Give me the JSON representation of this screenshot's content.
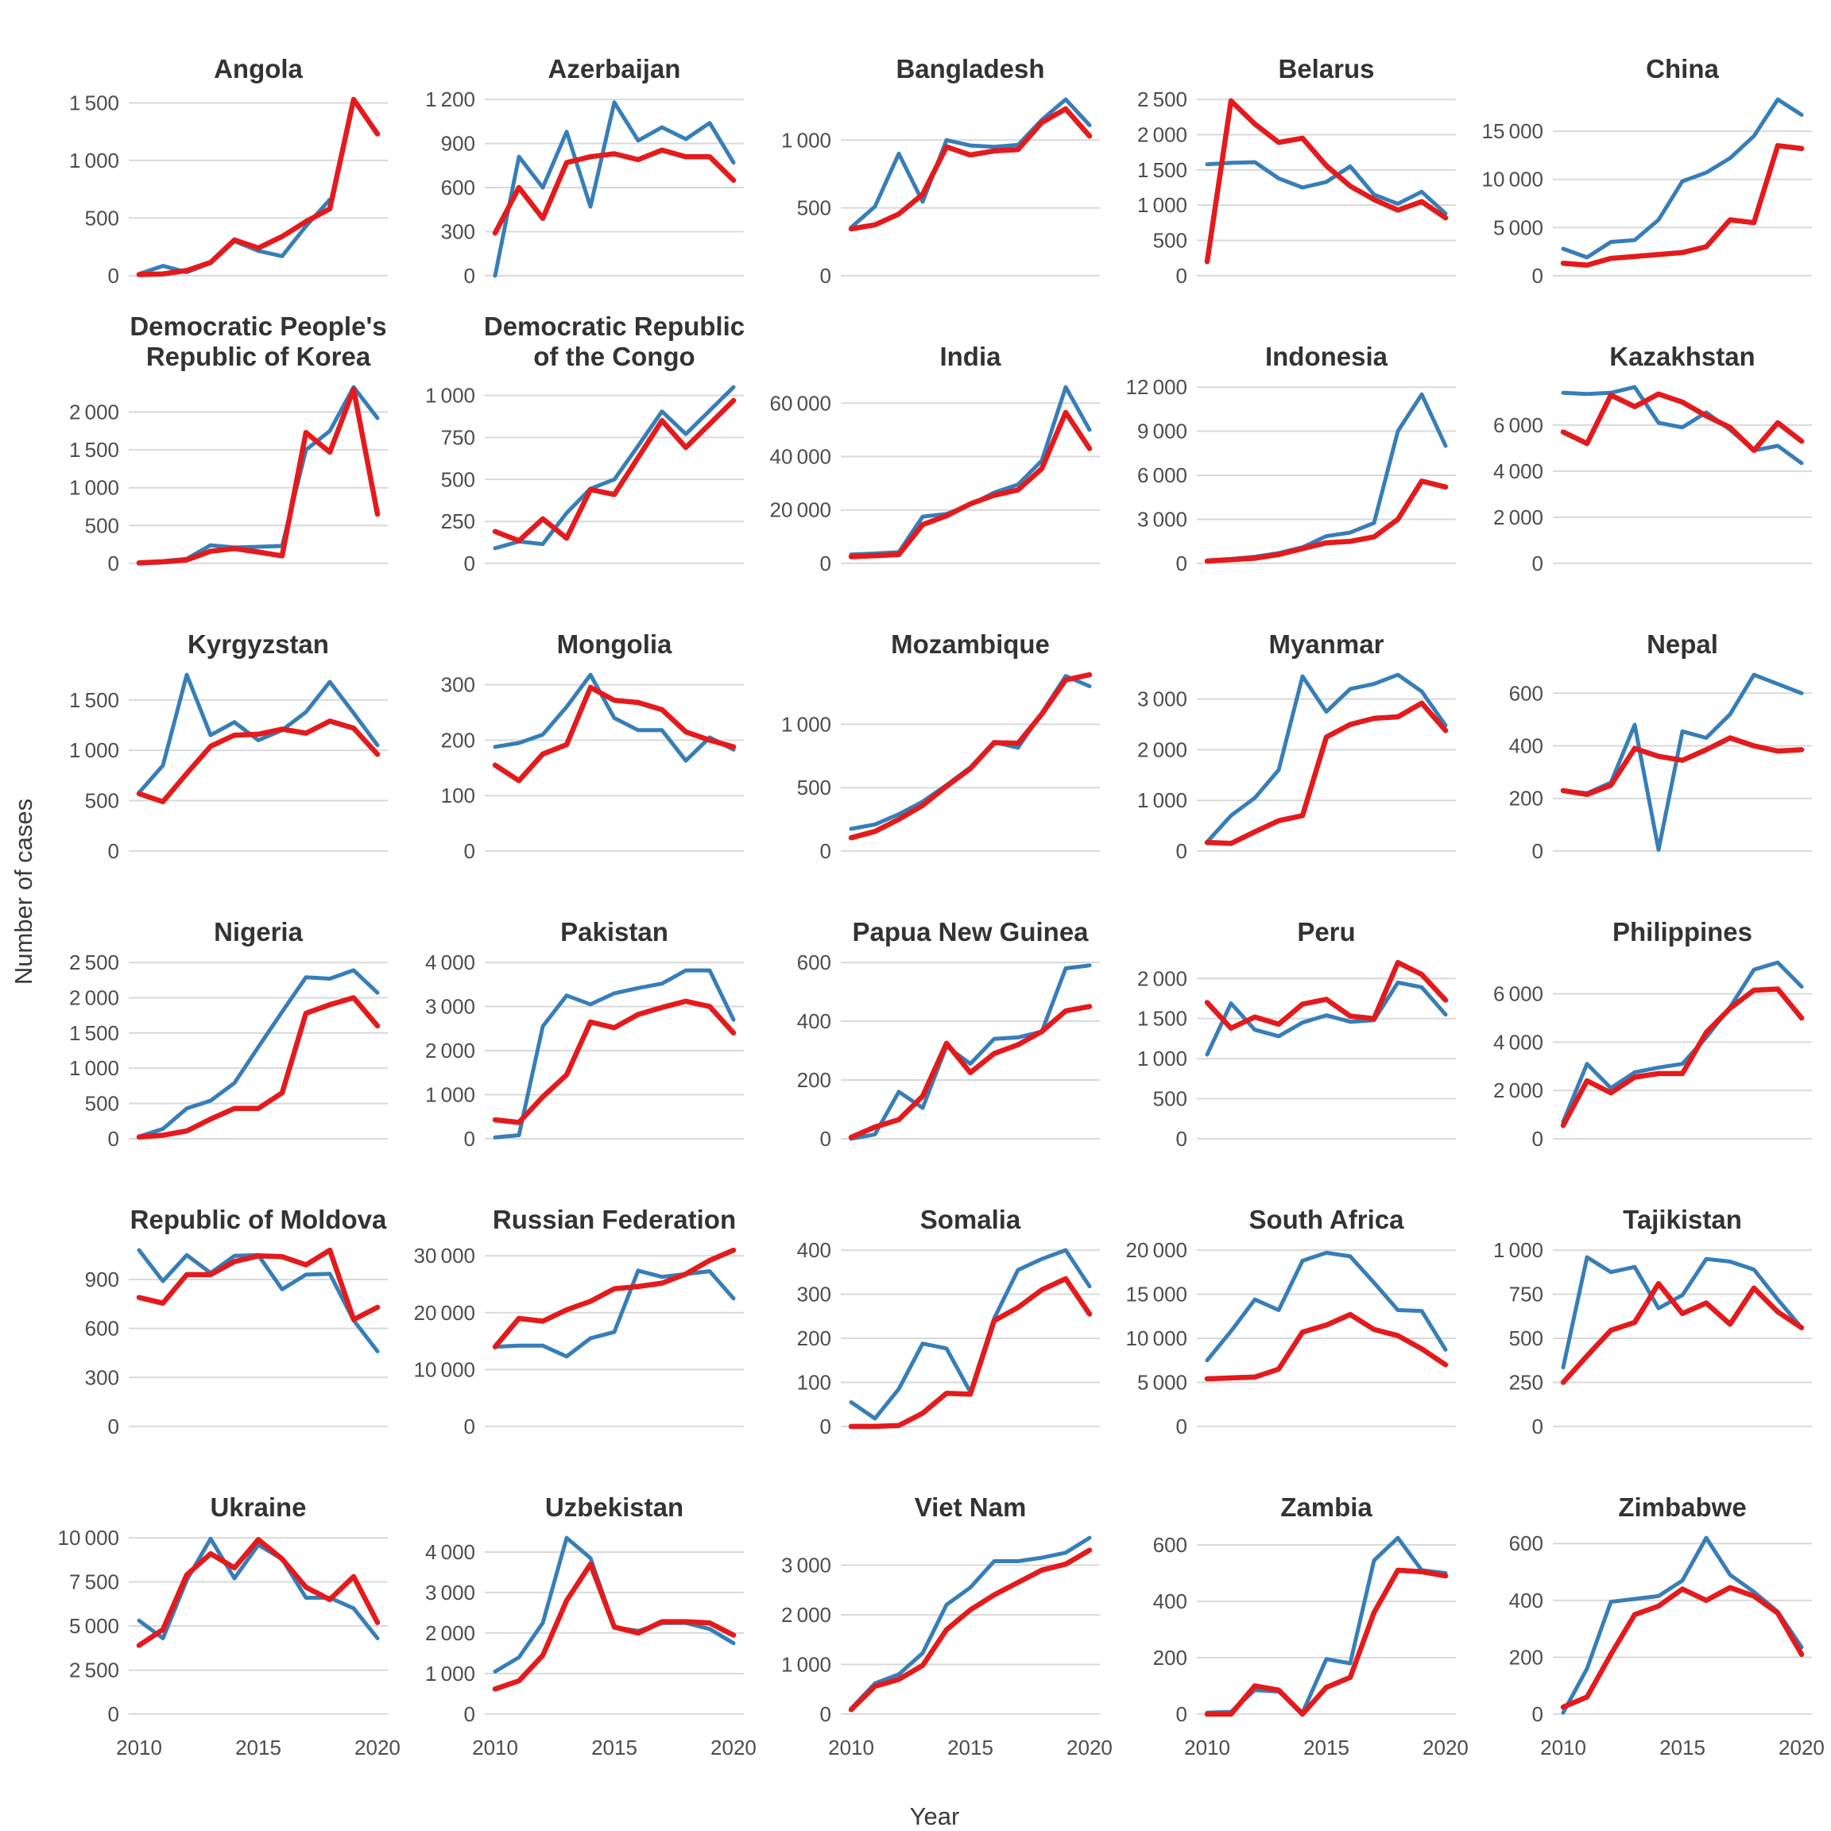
{
  "figure": {
    "kind": "faceted-line-chart-grid",
    "rows": 6,
    "cols": 5
  },
  "chart_data": {
    "type": "line",
    "title": "",
    "xlabel": "Year",
    "ylabel": "Number of cases",
    "x": [
      2010,
      2011,
      2012,
      2013,
      2014,
      2015,
      2016,
      2017,
      2018,
      2019,
      2020
    ],
    "x_axis_ticks": [
      2010,
      2015,
      2020
    ],
    "legend": "none",
    "grid": "horizontal-only",
    "series_colors": {
      "blue": "#377EB8",
      "red": "#E41A1C"
    },
    "panels": [
      {
        "title": "Angola",
        "yticks": [
          0,
          500,
          1000,
          1500
        ],
        "series": {
          "blue": [
            15,
            85,
            30,
            110,
            300,
            215,
            170,
            430,
            660,
            null,
            null
          ],
          "red": [
            10,
            15,
            45,
            115,
            310,
            240,
            340,
            470,
            580,
            1530,
            1230
          ]
        }
      },
      {
        "title": "Azerbaijan",
        "yticks": [
          0,
          300,
          600,
          900,
          1200
        ],
        "series": {
          "blue": [
            0,
            810,
            600,
            980,
            470,
            1180,
            920,
            1010,
            930,
            1040,
            770
          ],
          "red": [
            290,
            600,
            390,
            770,
            810,
            830,
            790,
            855,
            810,
            810,
            650
          ]
        }
      },
      {
        "title": "Bangladesh",
        "yticks": [
          0,
          500,
          1000
        ],
        "series": {
          "blue": [
            355,
            510,
            900,
            545,
            1000,
            960,
            950,
            965,
            1150,
            1300,
            1110
          ],
          "red": [
            345,
            375,
            455,
            600,
            950,
            890,
            920,
            930,
            1130,
            1230,
            1030
          ]
        }
      },
      {
        "title": "Belarus",
        "yticks": [
          0,
          500,
          1000,
          1500,
          2000,
          2500
        ],
        "series": {
          "blue": [
            1580,
            1600,
            1610,
            1380,
            1250,
            1330,
            1550,
            1150,
            1020,
            1190,
            880
          ],
          "red": [
            200,
            2480,
            2150,
            1890,
            1950,
            1560,
            1270,
            1080,
            930,
            1050,
            820
          ]
        }
      },
      {
        "title": "China",
        "yticks": [
          0,
          5000,
          10000,
          15000
        ],
        "series": {
          "blue": [
            2800,
            1900,
            3500,
            3700,
            5800,
            9800,
            10700,
            12200,
            14500,
            18300,
            16700
          ],
          "red": [
            1300,
            1100,
            1800,
            2000,
            2200,
            2400,
            3000,
            5800,
            5500,
            13500,
            13200
          ]
        }
      },
      {
        "title": "Democratic People's Republic of Korea",
        "yticks": [
          0,
          500,
          1000,
          1500,
          2000
        ],
        "series": {
          "blue": [
            15,
            30,
            60,
            240,
            210,
            220,
            230,
            1500,
            1750,
            2330,
            1920
          ],
          "red": [
            5,
            20,
            45,
            160,
            195,
            150,
            100,
            1730,
            1470,
            2300,
            650
          ]
        }
      },
      {
        "title": "Democratic Republic of the Congo",
        "yticks": [
          0,
          250,
          500,
          750,
          1000
        ],
        "series": {
          "blue": [
            90,
            130,
            115,
            300,
            445,
            500,
            700,
            905,
            770,
            910,
            1050
          ],
          "red": [
            190,
            135,
            265,
            150,
            440,
            410,
            630,
            850,
            690,
            830,
            970
          ]
        }
      },
      {
        "title": "India",
        "yticks": [
          0,
          20000,
          40000,
          60000
        ],
        "series": {
          "blue": [
            3300,
            3700,
            4200,
            17500,
            18500,
            22000,
            26500,
            29500,
            38500,
            66000,
            50000
          ],
          "red": [
            2500,
            2900,
            3300,
            14500,
            17800,
            22300,
            25500,
            27500,
            35500,
            56500,
            43000
          ]
        }
      },
      {
        "title": "Indonesia",
        "yticks": [
          0,
          3000,
          6000,
          9000,
          12000
        ],
        "series": {
          "blue": [
            200,
            300,
            450,
            700,
            1100,
            1850,
            2100,
            2750,
            9000,
            11500,
            8000
          ],
          "red": [
            150,
            250,
            350,
            600,
            1000,
            1400,
            1500,
            1800,
            3000,
            5600,
            5200
          ]
        }
      },
      {
        "title": "Kazakhstan",
        "yticks": [
          0,
          2000,
          4000,
          6000
        ],
        "series": {
          "blue": [
            7400,
            7350,
            7400,
            7650,
            6100,
            5900,
            6550,
            5800,
            4900,
            5100,
            4350
          ],
          "red": [
            5700,
            5200,
            7300,
            6800,
            7350,
            7000,
            6400,
            5900,
            4900,
            6100,
            5300
          ]
        }
      },
      {
        "title": "Kyrgyzstan",
        "yticks": [
          0,
          500,
          1000,
          1500
        ],
        "series": {
          "blue": [
            580,
            850,
            1750,
            1150,
            1280,
            1100,
            1200,
            1380,
            1680,
            1370,
            1050
          ],
          "red": [
            570,
            490,
            770,
            1040,
            1150,
            1160,
            1210,
            1170,
            1290,
            1220,
            960
          ]
        }
      },
      {
        "title": "Mongolia",
        "yticks": [
          0,
          100,
          200,
          300
        ],
        "series": {
          "blue": [
            188,
            195,
            210,
            260,
            318,
            240,
            218,
            218,
            163,
            205,
            183
          ],
          "red": [
            155,
            127,
            175,
            192,
            295,
            272,
            268,
            255,
            215,
            200,
            188
          ]
        }
      },
      {
        "title": "Mozambique",
        "yticks": [
          0,
          500,
          1000
        ],
        "series": {
          "blue": [
            175,
            210,
            290,
            390,
            520,
            660,
            860,
            815,
            1090,
            1380,
            1300
          ],
          "red": [
            105,
            155,
            250,
            360,
            510,
            650,
            855,
            850,
            1080,
            1350,
            1390
          ]
        }
      },
      {
        "title": "Myanmar",
        "yticks": [
          0,
          1000,
          2000,
          3000
        ],
        "series": {
          "blue": [
            180,
            700,
            1050,
            1600,
            3450,
            2750,
            3200,
            3300,
            3480,
            3150,
            2480
          ],
          "red": [
            170,
            150,
            380,
            600,
            700,
            2250,
            2500,
            2620,
            2650,
            2920,
            2380
          ]
        }
      },
      {
        "title": "Nepal",
        "yticks": [
          0,
          200,
          400,
          600
        ],
        "series": {
          "blue": [
            230,
            220,
            260,
            480,
            5,
            455,
            430,
            520,
            670,
            635,
            600
          ],
          "red": [
            230,
            215,
            250,
            390,
            360,
            345,
            385,
            430,
            400,
            380,
            385
          ]
        }
      },
      {
        "title": "Nigeria",
        "yticks": [
          0,
          500,
          1000,
          1500,
          2000,
          2500
        ],
        "series": {
          "blue": [
            30,
            140,
            430,
            540,
            790,
            1300,
            1800,
            2290,
            2270,
            2390,
            2070
          ],
          "red": [
            25,
            50,
            110,
            280,
            430,
            430,
            650,
            1780,
            1900,
            2000,
            1600
          ]
        }
      },
      {
        "title": "Pakistan",
        "yticks": [
          0,
          1000,
          2000,
          3000,
          4000
        ],
        "series": {
          "blue": [
            30,
            80,
            2550,
            3250,
            3050,
            3300,
            3420,
            3520,
            3820,
            3820,
            2700
          ],
          "red": [
            430,
            370,
            950,
            1450,
            2650,
            2520,
            2820,
            2980,
            3120,
            3000,
            2400
          ]
        }
      },
      {
        "title": "Papua New Guinea",
        "yticks": [
          0,
          200,
          400,
          600
        ],
        "series": {
          "blue": [
            0,
            15,
            160,
            105,
            315,
            255,
            340,
            345,
            365,
            580,
            590
          ],
          "red": [
            5,
            40,
            65,
            145,
            325,
            225,
            290,
            320,
            365,
            435,
            450
          ]
        }
      },
      {
        "title": "Peru",
        "yticks": [
          0,
          500,
          1000,
          1500,
          2000
        ],
        "series": {
          "blue": [
            1050,
            1690,
            1360,
            1280,
            1450,
            1540,
            1460,
            1480,
            1950,
            1890,
            1550
          ],
          "red": [
            1700,
            1380,
            1520,
            1430,
            1680,
            1740,
            1530,
            1500,
            2200,
            2050,
            1730
          ]
        }
      },
      {
        "title": "Philippines",
        "yticks": [
          0,
          2000,
          4000,
          6000
        ],
        "series": {
          "blue": [
            700,
            3100,
            2100,
            2750,
            2950,
            3100,
            4200,
            5450,
            7000,
            7300,
            6300
          ],
          "red": [
            550,
            2400,
            1900,
            2550,
            2700,
            2700,
            4400,
            5400,
            6150,
            6200,
            5000
          ]
        }
      },
      {
        "title": "Republic of Moldova",
        "yticks": [
          0,
          300,
          600,
          900
        ],
        "series": {
          "blue": [
            1080,
            890,
            1050,
            940,
            1045,
            1050,
            840,
            930,
            935,
            650,
            460
          ],
          "red": [
            790,
            755,
            930,
            930,
            1010,
            1045,
            1040,
            990,
            1080,
            655,
            730
          ]
        }
      },
      {
        "title": "Russian Federation",
        "yticks": [
          0,
          10000,
          20000,
          30000
        ],
        "series": {
          "blue": [
            14000,
            14200,
            14200,
            12300,
            15500,
            16600,
            27400,
            26300,
            26800,
            27300,
            22500
          ],
          "red": [
            14000,
            19000,
            18500,
            20500,
            22000,
            24200,
            24600,
            25200,
            26800,
            29200,
            31000
          ]
        }
      },
      {
        "title": "Somalia",
        "yticks": [
          0,
          100,
          200,
          300,
          400
        ],
        "series": {
          "blue": [
            55,
            18,
            85,
            188,
            177,
            78,
            245,
            355,
            380,
            400,
            318
          ],
          "red": [
            0,
            0,
            2,
            30,
            75,
            73,
            240,
            270,
            310,
            335,
            255
          ]
        }
      },
      {
        "title": "South Africa",
        "yticks": [
          0,
          5000,
          10000,
          15000,
          20000
        ],
        "series": {
          "blue": [
            7500,
            10800,
            14400,
            13200,
            18800,
            19700,
            19300,
            16300,
            13200,
            13100,
            8700
          ],
          "red": [
            5400,
            5500,
            5600,
            6500,
            10700,
            11500,
            12700,
            11000,
            10300,
            8800,
            7000
          ]
        }
      },
      {
        "title": "Tajikistan",
        "yticks": [
          0,
          250,
          500,
          750,
          1000
        ],
        "series": {
          "blue": [
            335,
            960,
            875,
            905,
            670,
            745,
            950,
            935,
            890,
            720,
            560
          ],
          "red": [
            250,
            400,
            545,
            590,
            810,
            640,
            700,
            580,
            785,
            650,
            560
          ]
        }
      },
      {
        "title": "Ukraine",
        "yticks": [
          0,
          2500,
          5000,
          7500,
          10000
        ],
        "series": {
          "blue": [
            5300,
            4300,
            7600,
            9950,
            7700,
            9600,
            8800,
            6600,
            6600,
            6000,
            4300
          ],
          "red": [
            3900,
            4800,
            7900,
            9100,
            8300,
            9900,
            8800,
            7200,
            6500,
            7800,
            5200
          ]
        }
      },
      {
        "title": "Uzbekistan",
        "yticks": [
          0,
          1000,
          2000,
          3000,
          4000
        ],
        "series": {
          "blue": [
            1050,
            1400,
            2250,
            4350,
            3850,
            2150,
            2050,
            2250,
            2250,
            2100,
            1750
          ],
          "red": [
            620,
            820,
            1450,
            2800,
            3700,
            2150,
            2000,
            2280,
            2280,
            2250,
            1950
          ]
        }
      },
      {
        "title": "Viet Nam",
        "yticks": [
          0,
          1000,
          2000,
          3000
        ],
        "series": {
          "blue": [
            110,
            620,
            800,
            1230,
            2200,
            2550,
            3080,
            3080,
            3150,
            3250,
            3550
          ],
          "red": [
            90,
            560,
            700,
            980,
            1700,
            2100,
            2400,
            2650,
            2900,
            3020,
            3300
          ]
        }
      },
      {
        "title": "Zambia",
        "yticks": [
          0,
          200,
          400,
          600
        ],
        "series": {
          "blue": [
            5,
            8,
            85,
            80,
            5,
            195,
            180,
            545,
            625,
            510,
            500
          ],
          "red": [
            0,
            0,
            100,
            85,
            0,
            95,
            130,
            360,
            510,
            505,
            490
          ]
        }
      },
      {
        "title": "Zimbabwe",
        "yticks": [
          0,
          200,
          400,
          600
        ],
        "series": {
          "blue": [
            5,
            160,
            395,
            405,
            415,
            470,
            620,
            490,
            430,
            360,
            235
          ],
          "red": [
            25,
            60,
            210,
            350,
            380,
            440,
            400,
            445,
            415,
            355,
            210
          ]
        }
      }
    ],
    "style": {
      "grid_color": "#d9d9d9",
      "tick_text_color": "#4d4d4d",
      "title_text_color": "#333333"
    }
  }
}
